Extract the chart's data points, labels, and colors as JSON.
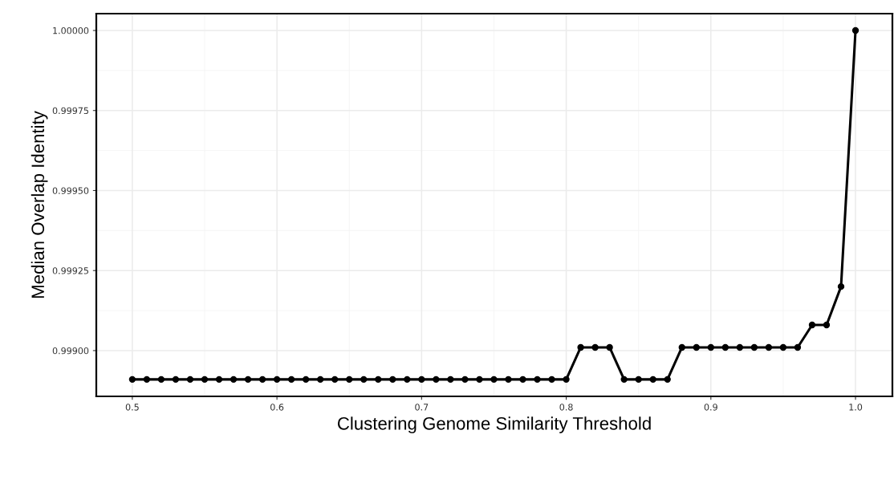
{
  "chart_data": {
    "type": "line",
    "xlabel": "Clustering Genome Similarity Threshold",
    "ylabel": "Median Overlap Identity",
    "x": [
      0.5,
      0.51,
      0.52,
      0.53,
      0.54,
      0.55,
      0.56,
      0.57,
      0.58,
      0.59,
      0.6,
      0.61,
      0.62,
      0.63,
      0.64,
      0.65,
      0.66,
      0.67,
      0.68,
      0.69,
      0.7,
      0.71,
      0.72,
      0.73,
      0.74,
      0.75,
      0.76,
      0.77,
      0.78,
      0.79,
      0.8,
      0.81,
      0.82,
      0.83,
      0.84,
      0.85,
      0.86,
      0.87,
      0.88,
      0.89,
      0.9,
      0.91,
      0.92,
      0.93,
      0.94,
      0.95,
      0.96,
      0.97,
      0.98,
      0.99,
      1.0
    ],
    "series": [
      {
        "color": "#000000",
        "values": [
          0.99891,
          0.99891,
          0.99891,
          0.99891,
          0.99891,
          0.99891,
          0.99891,
          0.99891,
          0.99891,
          0.99891,
          0.99891,
          0.99891,
          0.99891,
          0.99891,
          0.99891,
          0.99891,
          0.99891,
          0.99891,
          0.99891,
          0.99891,
          0.99891,
          0.99891,
          0.99891,
          0.99891,
          0.99891,
          0.99891,
          0.99891,
          0.99891,
          0.99891,
          0.99891,
          0.99891,
          0.99901,
          0.99901,
          0.99901,
          0.99891,
          0.99891,
          0.99891,
          0.99891,
          0.99901,
          0.99901,
          0.99901,
          0.99901,
          0.99901,
          0.99901,
          0.99901,
          0.99901,
          0.99901,
          0.99908,
          0.99908,
          0.9992,
          1.0
        ]
      }
    ],
    "xlim": [
      0.4751,
      1.0255
    ],
    "ylim": [
      0.998857,
      1.0000526
    ],
    "xticks": [
      0.5,
      0.6,
      0.7,
      0.8,
      0.9,
      {
        "value": 1.0,
        "label": "1.0"
      }
    ],
    "yticks": [
      {
        "value": 0.999,
        "label": "0.99900"
      },
      {
        "value": 0.99925,
        "label": "0.99925"
      },
      {
        "value": 0.9995,
        "label": "0.99950"
      },
      {
        "value": 0.99975,
        "label": "0.99975"
      },
      {
        "value": 1.0,
        "label": "1.00000"
      }
    ],
    "grid": true,
    "marker": "circle",
    "line_style": "solid",
    "legend": false
  }
}
